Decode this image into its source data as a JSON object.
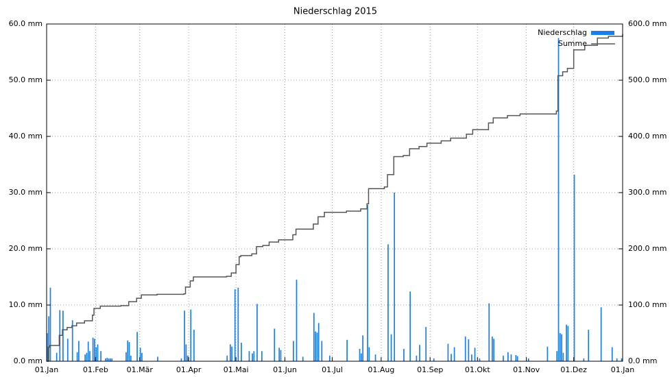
{
  "chart_data": {
    "type": "bar_line",
    "title": "Niederschlag 2015",
    "xlim": [
      0,
      365
    ],
    "xticks": [
      {
        "value": 0,
        "label": "01.Jan"
      },
      {
        "value": 31,
        "label": "01.Feb"
      },
      {
        "value": 59,
        "label": "01.Mär"
      },
      {
        "value": 90,
        "label": "01.Apr"
      },
      {
        "value": 120,
        "label": "01.Mai"
      },
      {
        "value": 151,
        "label": "01.Jun"
      },
      {
        "value": 181,
        "label": "01.Jul"
      },
      {
        "value": 212,
        "label": "01.Aug"
      },
      {
        "value": 243,
        "label": "01.Sep"
      },
      {
        "value": 273,
        "label": "01.Okt"
      },
      {
        "value": 304,
        "label": "01.Nov"
      },
      {
        "value": 334,
        "label": "01.Dez"
      },
      {
        "value": 365,
        "label": "01.Jan"
      }
    ],
    "ylim": [
      0,
      60
    ],
    "yticks": [
      {
        "value": 0,
        "label": "0.0 mm"
      },
      {
        "value": 10,
        "label": "10.0 mm"
      },
      {
        "value": 20,
        "label": "20.0 mm"
      },
      {
        "value": 30,
        "label": "30.0 mm"
      },
      {
        "value": 40,
        "label": "40.0 mm"
      },
      {
        "value": 50,
        "label": "50.0 mm"
      },
      {
        "value": 60,
        "label": "60.0 mm"
      }
    ],
    "y2lim": [
      0,
      600
    ],
    "y2ticks": [
      {
        "value": 0,
        "label": "0.0 mm"
      },
      {
        "value": 100,
        "label": "100.0 mm"
      },
      {
        "value": 200,
        "label": "200.0 mm"
      },
      {
        "value": 300,
        "label": "300.0 mm"
      },
      {
        "value": 400,
        "label": "400.0 mm"
      },
      {
        "value": 500,
        "label": "500.0 mm"
      },
      {
        "value": 600,
        "label": "600.0 mm"
      }
    ],
    "grid": true,
    "legend": "top-right",
    "series": [
      {
        "name": "Niederschlag",
        "kind": "bar",
        "color": "#1a80e8",
        "x": [
          0,
          1,
          2,
          6,
          8,
          10,
          13,
          16,
          19,
          20,
          24,
          25,
          26,
          27,
          29,
          30,
          31,
          32,
          34,
          37,
          38,
          39,
          40,
          41,
          50,
          51,
          52,
          53,
          57,
          59,
          60,
          70,
          85,
          87,
          88,
          89,
          91,
          93,
          114,
          116,
          117,
          119,
          121,
          123,
          128,
          130,
          131,
          133,
          136,
          144,
          147,
          148,
          156,
          158,
          162,
          169,
          170,
          171,
          172,
          174,
          179,
          190,
          198,
          199,
          200,
          203,
          204,
          208,
          216,
          218,
          220,
          226,
          230,
          234,
          236,
          240,
          245,
          254,
          256,
          258,
          265,
          267,
          269,
          271,
          274,
          280,
          282,
          283,
          289,
          292,
          294,
          297,
          298,
          305,
          317,
          323,
          324,
          325,
          326,
          327,
          329,
          330,
          334,
          340,
          343,
          351,
          358,
          361,
          364
        ],
        "values": [
          5.0,
          8.0,
          13.1,
          1.5,
          9.1,
          9.0,
          4.0,
          7.3,
          1.6,
          3.6,
          1.2,
          1.5,
          3.5,
          1.8,
          4.2,
          4.0,
          2.5,
          3.0,
          1.8,
          0.5,
          0.6,
          0.5,
          0.5,
          0.5,
          1.6,
          3.7,
          3.4,
          1.0,
          5.2,
          2.4,
          1.5,
          0.8,
          0.5,
          9.0,
          3.0,
          1.0,
          9.2,
          5.6,
          1.0,
          3.0,
          2.6,
          12.8,
          13.1,
          3.3,
          1.8,
          1.4,
          1.8,
          10.2,
          1.8,
          5.8,
          2.4,
          2.0,
          3.6,
          14.5,
          0.8,
          8.6,
          5.3,
          5.1,
          6.8,
          3.6,
          1.0,
          3.8,
          2.2,
          1.4,
          4.6,
          27.8,
          2.5,
          1.2,
          20.8,
          4.8,
          30.0,
          2.2,
          12.4,
          1.0,
          2.9,
          6.1,
          0.5,
          3.1,
          1.3,
          2.5,
          4.4,
          3.9,
          1.2,
          2.4,
          0.5,
          10.3,
          4.4,
          4.0,
          1.0,
          1.6,
          1.2,
          1.1,
          0.9,
          0.5,
          2.6,
          1.8,
          57.5,
          5.0,
          4.8,
          1.5,
          6.5,
          6.3,
          33.2,
          0.5,
          5.6,
          9.6,
          2.5,
          0.5,
          0.5
        ]
      },
      {
        "name": "Summe",
        "kind": "step",
        "axis": "y2",
        "color": "#555555",
        "x": [
          0,
          1,
          2,
          6,
          8,
          10,
          13,
          16,
          19,
          24,
          29,
          30,
          34,
          47,
          52,
          57,
          60,
          70,
          87,
          88,
          91,
          93,
          114,
          117,
          120,
          122,
          123,
          130,
          133,
          137,
          141,
          147,
          156,
          158,
          169,
          172,
          176,
          190,
          199,
          203,
          204,
          214,
          216,
          220,
          226,
          230,
          236,
          241,
          250,
          256,
          266,
          270,
          280,
          283,
          292,
          300,
          323,
          324,
          327,
          330,
          334,
          341,
          349,
          356,
          365
        ],
        "values": [
          0,
          25,
          28,
          28,
          46,
          56,
          60,
          63,
          68,
          72,
          82,
          94,
          98,
          99,
          106,
          112,
          118,
          119,
          120,
          132,
          143,
          150,
          151,
          157,
          172,
          186,
          188,
          191,
          204,
          206,
          212,
          216,
          225,
          235,
          244,
          257,
          265,
          267,
          271,
          280,
          307,
          310,
          332,
          364,
          366,
          378,
          382,
          388,
          392,
          397,
          404,
          412,
          424,
          433,
          437,
          440,
          445,
          508,
          515,
          521,
          554,
          562,
          575,
          578,
          582
        ]
      }
    ]
  }
}
